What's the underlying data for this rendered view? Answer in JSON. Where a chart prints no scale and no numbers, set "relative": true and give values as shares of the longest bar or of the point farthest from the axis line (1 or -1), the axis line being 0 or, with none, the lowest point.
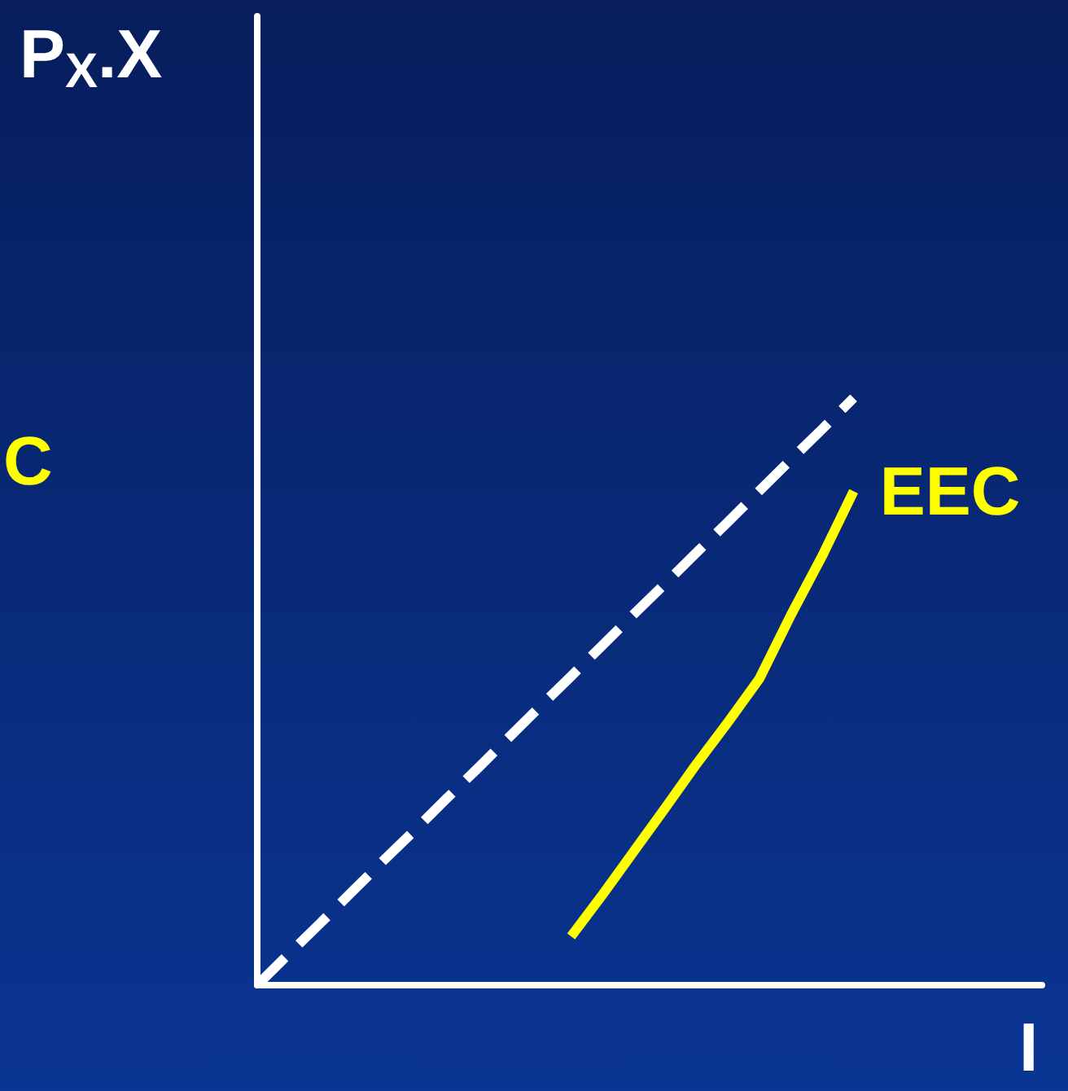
{
  "chart_data": {
    "type": "line",
    "relative": true,
    "xlabel": "I",
    "ylabel": "P$_{X}$.X",
    "annotations": [
      "C"
    ],
    "grid": false,
    "legend": false,
    "marker": "none",
    "categories": [
      null,
      null,
      null,
      null,
      null,
      null,
      null,
      null,
      null,
      null,
      null,
      null,
      null,
      null,
      null,
      null,
      null,
      null,
      null,
      null,
      null,
      null,
      null,
      null,
      null,
      null
    ],
    "series": [
      {
        "color": "#ffffff",
        "line_style": "dashed",
        "values": [
          0,
          0.053,
          0.105,
          0.158,
          0.211,
          0.263,
          0.316,
          0.368,
          0.421,
          0.474,
          0.526,
          0.579,
          0.632,
          0.684,
          0.737,
          0.789,
          0.842,
          0.895,
          0.947,
          1,
          null,
          null,
          null,
          null,
          null,
          null
        ]
      },
      {
        "name": "EEC",
        "color": "#ffff00",
        "line_style": "solid",
        "values": [
          null,
          null,
          null,
          null,
          null,
          null,
          null,
          null,
          null,
          null,
          0.083,
          0.154,
          0.228,
          0.302,
          0.377,
          0.448,
          0.522,
          0.63,
          0.731,
          0.841,
          null,
          null,
          null,
          null,
          null,
          null
        ]
      }
    ]
  }
}
